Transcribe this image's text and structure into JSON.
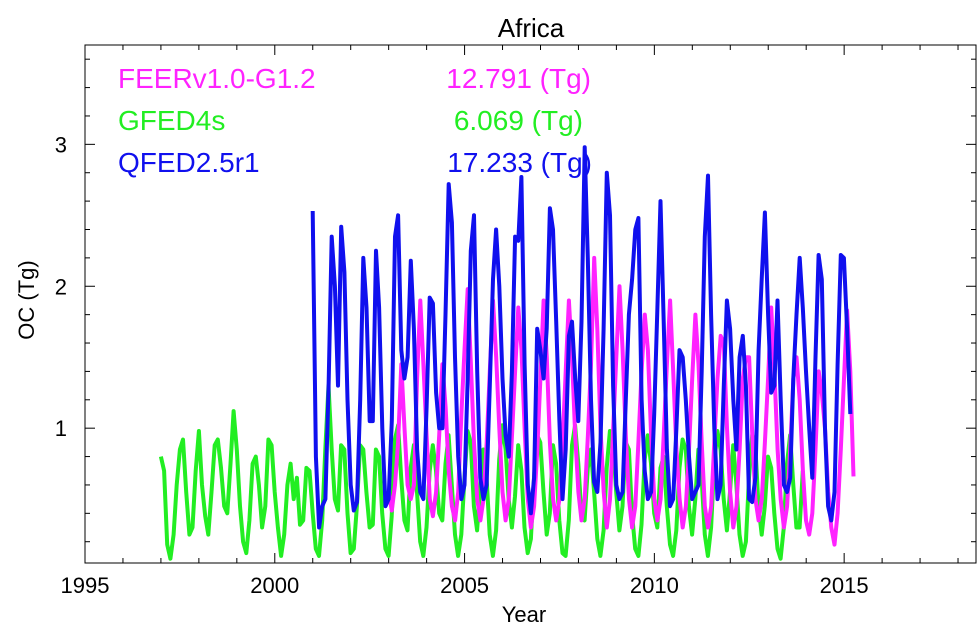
{
  "chart_data": {
    "type": "line",
    "title": "Africa",
    "xlabel": "Year",
    "ylabel": "OC (Tg)",
    "xlim": [
      1995,
      2018.5
    ],
    "ylim": [
      0.05,
      3.7
    ],
    "xticks": [
      1995,
      2000,
      2005,
      2010,
      2015
    ],
    "yticks": [
      1,
      2,
      3
    ],
    "x_tick_labels": [
      "1995",
      "2000",
      "2005",
      "2010",
      "2015"
    ],
    "y_tick_labels": [
      "1",
      "2",
      "3"
    ],
    "grid": false,
    "legend_placement": "top-left",
    "series": [
      {
        "name": "FEERv1.0-G1.2",
        "total_label": "12.791 (Tg)",
        "color": "#ff22ff",
        "x_start": 2003.0,
        "step": 0.0833,
        "values": [
          0.55,
          0.42,
          0.6,
          0.9,
          1.45,
          1.0,
          0.6,
          0.5,
          0.6,
          1.35,
          1.9,
          1.45,
          0.95,
          0.5,
          0.38,
          0.55,
          0.95,
          1.45,
          1.15,
          0.7,
          0.45,
          0.35,
          0.55,
          1.1,
          1.55,
          1.98,
          1.45,
          0.9,
          0.5,
          0.35,
          0.5,
          0.9,
          1.4,
          1.9,
          1.5,
          1.0,
          0.55,
          0.35,
          0.5,
          0.95,
          1.4,
          1.85,
          1.55,
          1.0,
          0.5,
          0.3,
          0.45,
          0.85,
          1.35,
          1.9,
          1.5,
          0.9,
          0.5,
          0.35,
          0.5,
          0.9,
          1.4,
          1.9,
          1.5,
          0.95,
          0.55,
          0.35,
          0.5,
          0.95,
          1.45,
          2.2,
          1.7,
          1.0,
          0.55,
          0.3,
          0.5,
          1.0,
          1.5,
          2.0,
          1.55,
          0.95,
          0.5,
          0.3,
          0.45,
          0.9,
          1.4,
          1.8,
          1.55,
          0.95,
          0.5,
          0.35,
          0.5,
          0.95,
          1.45,
          1.9,
          1.4,
          0.85,
          0.5,
          0.3,
          0.45,
          0.85,
          1.35,
          1.8,
          1.45,
          0.9,
          0.45,
          0.3,
          0.45,
          0.9,
          1.35,
          1.65,
          1.6,
          1.0,
          0.55,
          0.3,
          0.45,
          0.85,
          1.35,
          1.5,
          1.5,
          0.95,
          0.5,
          0.35,
          0.5,
          0.9,
          1.35,
          1.85,
          1.4,
          0.85,
          0.5,
          0.3,
          0.45,
          0.85,
          1.35,
          1.5,
          1.2,
          0.7,
          0.35,
          0.25,
          0.4,
          0.85,
          1.4,
          1.25,
          1.0,
          0.55,
          0.3,
          0.18,
          0.4,
          0.85,
          1.35,
          1.83,
          1.4,
          0.66
        ]
      },
      {
        "name": "GFED4s",
        "total_label": "6.069 (Tg)",
        "color": "#22ee22",
        "x_start": 1997.0,
        "step": 0.0833,
        "values": [
          0.8,
          0.7,
          0.18,
          0.08,
          0.25,
          0.6,
          0.85,
          0.92,
          0.55,
          0.25,
          0.3,
          0.7,
          0.98,
          0.6,
          0.38,
          0.25,
          0.55,
          0.88,
          0.92,
          0.72,
          0.45,
          0.4,
          0.75,
          1.12,
          0.85,
          0.45,
          0.2,
          0.12,
          0.35,
          0.75,
          0.8,
          0.6,
          0.3,
          0.45,
          0.92,
          0.88,
          0.55,
          0.3,
          0.1,
          0.25,
          0.6,
          0.75,
          0.5,
          0.65,
          0.32,
          0.35,
          0.72,
          0.7,
          0.4,
          0.15,
          0.1,
          0.35,
          0.85,
          1.3,
          0.85,
          0.5,
          0.42,
          0.88,
          0.85,
          0.4,
          0.12,
          0.15,
          0.45,
          0.88,
          0.85,
          0.55,
          0.3,
          0.32,
          0.85,
          0.8,
          0.4,
          0.15,
          0.1,
          0.38,
          0.92,
          1.02,
          0.65,
          0.35,
          0.28,
          0.72,
          0.88,
          0.55,
          0.2,
          0.1,
          0.3,
          0.7,
          0.88,
          0.7,
          0.4,
          0.35,
          0.75,
          0.95,
          0.6,
          0.25,
          0.1,
          0.25,
          0.65,
          0.98,
          0.9,
          0.45,
          0.28,
          0.6,
          0.85,
          0.65,
          0.25,
          0.1,
          0.28,
          0.78,
          1.02,
          0.85,
          0.5,
          0.3,
          0.52,
          0.88,
          0.7,
          0.3,
          0.12,
          0.22,
          0.65,
          0.95,
          0.9,
          0.55,
          0.25,
          0.4,
          0.88,
          0.75,
          0.35,
          0.12,
          0.1,
          0.35,
          0.88,
          1.02,
          0.75,
          0.4,
          0.35,
          0.72,
          0.85,
          0.55,
          0.22,
          0.1,
          0.28,
          0.72,
          0.98,
          0.9,
          0.55,
          0.28,
          0.45,
          0.9,
          0.85,
          0.4,
          0.15,
          0.1,
          0.32,
          0.78,
          0.95,
          0.75,
          0.4,
          0.3,
          0.72,
          0.8,
          0.45,
          0.18,
          0.1,
          0.28,
          0.72,
          0.92,
          0.85,
          0.45,
          0.25,
          0.5,
          0.85,
          0.65,
          0.25,
          0.1,
          0.3,
          0.75,
          0.98,
          0.85,
          0.5,
          0.28,
          0.55,
          0.88,
          0.6,
          0.25,
          0.1,
          0.2,
          0.65,
          0.95,
          0.88,
          0.45,
          0.25,
          0.45,
          0.8,
          0.72,
          0.4,
          0.15,
          0.08,
          0.3,
          0.75,
          0.95,
          0.6,
          0.3,
          0.3,
          0.7
        ]
      },
      {
        "name": "QFED2.5r1",
        "total_label": "17.233 (Tg)",
        "color": "#1010ee",
        "x_start": 2001.0,
        "step": 0.0833,
        "values": [
          2.53,
          0.8,
          0.3,
          0.45,
          0.5,
          1.3,
          2.35,
          2.0,
          1.3,
          2.42,
          2.1,
          1.2,
          0.6,
          0.42,
          0.48,
          1.2,
          2.2,
          1.85,
          1.05,
          1.05,
          2.25,
          1.85,
          1.0,
          0.45,
          0.5,
          1.05,
          2.35,
          2.5,
          1.55,
          1.35,
          1.5,
          2.18,
          1.7,
          0.85,
          0.55,
          0.5,
          1.15,
          1.92,
          1.88,
          1.25,
          1.0,
          1.0,
          1.8,
          2.72,
          2.45,
          1.5,
          0.8,
          0.5,
          0.6,
          1.35,
          2.25,
          2.5,
          1.4,
          0.65,
          0.5,
          0.6,
          1.3,
          2.05,
          2.4,
          2.0,
          1.35,
          0.95,
          0.8,
          1.4,
          2.35,
          2.32,
          2.77,
          1.45,
          0.6,
          0.4,
          0.65,
          1.7,
          1.55,
          1.35,
          1.7,
          2.55,
          2.4,
          1.75,
          1.05,
          0.5,
          0.85,
          1.65,
          1.75,
          1.35,
          1.05,
          1.75,
          2.98,
          2.2,
          1.2,
          0.62,
          0.55,
          0.9,
          1.7,
          2.8,
          2.5,
          1.3,
          0.6,
          0.5,
          0.55,
          1.2,
          1.8,
          2.05,
          2.4,
          2.48,
          1.2,
          0.7,
          0.5,
          0.55,
          1.1,
          1.85,
          2.6,
          1.75,
          0.85,
          0.45,
          0.5,
          1.0,
          1.55,
          1.5,
          1.2,
          0.8,
          0.5,
          0.55,
          0.6,
          1.4,
          2.35,
          2.78,
          1.8,
          1.0,
          0.5,
          0.6,
          1.3,
          1.9,
          1.7,
          1.2,
          0.85,
          1.5,
          1.65,
          1.3,
          0.5,
          0.48,
          0.65,
          1.55,
          2.05,
          2.52,
          1.8,
          1.25,
          1.3,
          1.9,
          1.2,
          0.6,
          0.55,
          0.65,
          1.35,
          1.8,
          2.2,
          1.85,
          1.4,
          1.0,
          0.65,
          1.5,
          2.22,
          2.05,
          1.0,
          0.45,
          0.35,
          0.55,
          1.45,
          2.22,
          2.2,
          1.7,
          1.1
        ]
      }
    ]
  }
}
